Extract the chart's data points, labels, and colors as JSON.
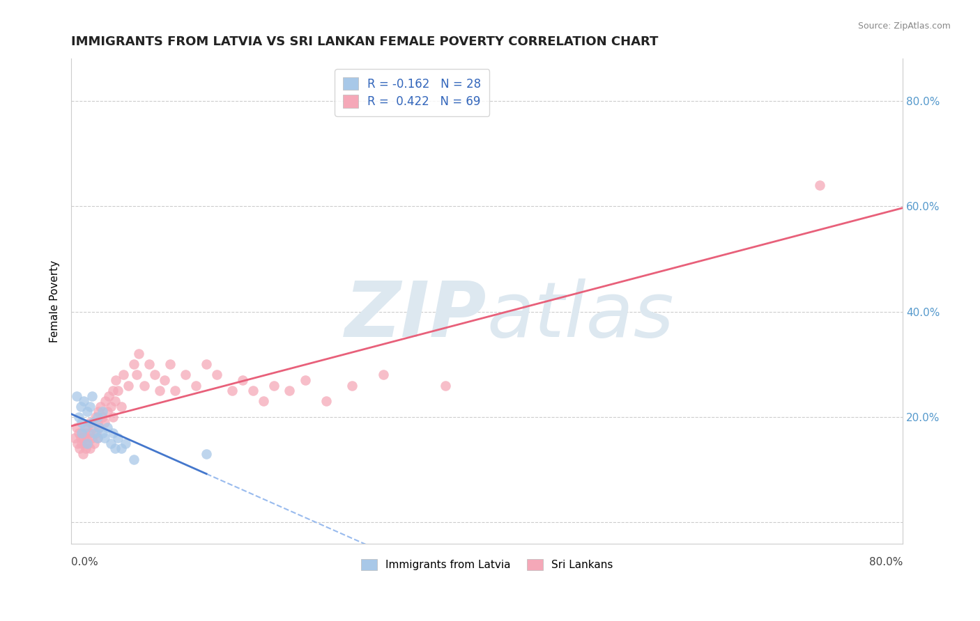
{
  "title": "IMMIGRANTS FROM LATVIA VS SRI LANKAN FEMALE POVERTY CORRELATION CHART",
  "source": "Source: ZipAtlas.com",
  "ylabel": "Female Poverty",
  "y_ticks": [
    0.0,
    0.2,
    0.4,
    0.6,
    0.8
  ],
  "y_tick_labels": [
    "",
    "20.0%",
    "40.0%",
    "60.0%",
    "80.0%"
  ],
  "x_lim": [
    0.0,
    0.8
  ],
  "y_lim": [
    -0.04,
    0.88
  ],
  "color_latvia": "#a8c8e8",
  "color_srilanka": "#f5a8b8",
  "line_color_latvia": "#4477cc",
  "line_color_srilanka": "#e8607a",
  "line_color_latvia_dashed": "#99bbee",
  "watermark_color": "#dde8f0",
  "latvia_x": [
    0.005,
    0.007,
    0.009,
    0.01,
    0.01,
    0.012,
    0.013,
    0.015,
    0.015,
    0.018,
    0.02,
    0.02,
    0.022,
    0.025,
    0.025,
    0.027,
    0.03,
    0.03,
    0.032,
    0.035,
    0.038,
    0.04,
    0.042,
    0.045,
    0.048,
    0.052,
    0.06,
    0.13
  ],
  "latvia_y": [
    0.24,
    0.2,
    0.22,
    0.19,
    0.17,
    0.23,
    0.18,
    0.21,
    0.15,
    0.22,
    0.19,
    0.24,
    0.17,
    0.2,
    0.16,
    0.18,
    0.17,
    0.21,
    0.16,
    0.18,
    0.15,
    0.17,
    0.14,
    0.16,
    0.14,
    0.15,
    0.12,
    0.13
  ],
  "srilanka_x": [
    0.003,
    0.005,
    0.006,
    0.007,
    0.008,
    0.009,
    0.01,
    0.01,
    0.011,
    0.012,
    0.013,
    0.013,
    0.014,
    0.015,
    0.015,
    0.016,
    0.017,
    0.018,
    0.018,
    0.02,
    0.021,
    0.022,
    0.023,
    0.024,
    0.025,
    0.025,
    0.026,
    0.027,
    0.028,
    0.03,
    0.032,
    0.033,
    0.035,
    0.036,
    0.038,
    0.04,
    0.04,
    0.042,
    0.043,
    0.045,
    0.048,
    0.05,
    0.055,
    0.06,
    0.063,
    0.065,
    0.07,
    0.075,
    0.08,
    0.085,
    0.09,
    0.095,
    0.1,
    0.11,
    0.12,
    0.13,
    0.14,
    0.155,
    0.165,
    0.175,
    0.185,
    0.195,
    0.21,
    0.225,
    0.245,
    0.27,
    0.3,
    0.36,
    0.72
  ],
  "srilanka_y": [
    0.16,
    0.18,
    0.15,
    0.17,
    0.14,
    0.16,
    0.15,
    0.17,
    0.13,
    0.16,
    0.15,
    0.17,
    0.14,
    0.16,
    0.18,
    0.15,
    0.17,
    0.14,
    0.19,
    0.16,
    0.18,
    0.15,
    0.2,
    0.17,
    0.16,
    0.19,
    0.21,
    0.18,
    0.22,
    0.2,
    0.19,
    0.23,
    0.21,
    0.24,
    0.22,
    0.2,
    0.25,
    0.23,
    0.27,
    0.25,
    0.22,
    0.28,
    0.26,
    0.3,
    0.28,
    0.32,
    0.26,
    0.3,
    0.28,
    0.25,
    0.27,
    0.3,
    0.25,
    0.28,
    0.26,
    0.3,
    0.28,
    0.25,
    0.27,
    0.25,
    0.23,
    0.26,
    0.25,
    0.27,
    0.23,
    0.26,
    0.28,
    0.26,
    0.64
  ],
  "legend_line1": "R = -0.162   N = 28",
  "legend_line2": "R =  0.422   N = 69"
}
